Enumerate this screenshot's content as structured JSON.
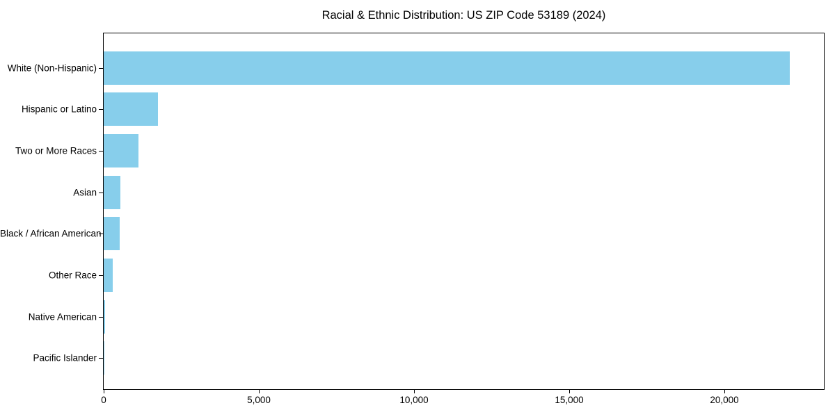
{
  "chart_data": {
    "type": "bar",
    "orientation": "horizontal",
    "title": "Racial & Ethnic Distribution: US ZIP Code 53189 (2024)",
    "categories": [
      "White (Non-Hispanic)",
      "Hispanic or Latino",
      "Two or More Races",
      "Asian",
      "Black / African American",
      "Other Race",
      "Native American",
      "Pacific Islander"
    ],
    "values": [
      22100,
      1750,
      1125,
      530,
      515,
      285,
      35,
      5
    ],
    "xlabel": "",
    "ylabel": "",
    "xlim": [
      0,
      23205
    ],
    "xticks": [
      0,
      5000,
      10000,
      15000,
      20000
    ],
    "xtick_labels": [
      "0",
      "5,000",
      "10,000",
      "15,000",
      "20,000"
    ],
    "bar_color": "#87CEEB",
    "axis_color": "#000000",
    "background_color": "#FFFFFF",
    "grid": false
  }
}
